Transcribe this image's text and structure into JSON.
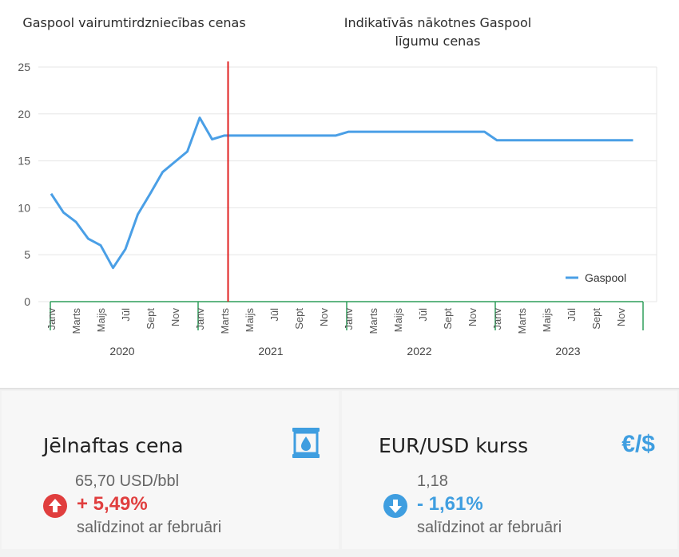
{
  "titles": {
    "left": "Gaspool vairumtirdzniecības cenas",
    "right": "Indikatīvās nākotnes Gaspool līgumu cenas"
  },
  "chart_data": {
    "type": "line",
    "title": "",
    "ylim": [
      0,
      25
    ],
    "yticks": [
      0,
      5,
      10,
      15,
      20,
      25
    ],
    "grid": true,
    "legend_position": "bottom-right",
    "months": [
      "Janv",
      "Marts",
      "Maijs",
      "Jūl",
      "Sept",
      "Nov"
    ],
    "years": [
      "2020",
      "2021",
      "2022",
      "2023"
    ],
    "divider_month_index": 14,
    "series": [
      {
        "name": "Gaspool",
        "color": "#4a9fe6",
        "values": [
          11.5,
          9.5,
          8.5,
          6.7,
          6.0,
          3.6,
          5.6,
          9.3,
          11.5,
          13.8,
          14.9,
          16.0,
          19.6,
          17.3,
          17.7,
          17.7,
          17.7,
          17.7,
          17.7,
          17.7,
          17.7,
          17.7,
          17.7,
          17.7,
          18.1,
          18.1,
          18.1,
          18.1,
          18.1,
          18.1,
          18.1,
          18.1,
          18.1,
          18.1,
          18.1,
          18.1,
          17.2,
          17.2,
          17.2,
          17.2,
          17.2,
          17.2,
          17.2,
          17.2,
          17.2,
          17.2,
          17.2,
          17.2
        ]
      }
    ]
  },
  "colors": {
    "line": "#4a9fe6",
    "divider": "#e02020",
    "axis_green": "#2f9e5a",
    "grid": "#e6e6e6",
    "up": "#e03e3e",
    "down": "#3f9ee0"
  },
  "cards": {
    "oil": {
      "title": "Jēlnaftas cena",
      "icon": "oil-barrel-icon",
      "value": "65,70 USD/bbl",
      "change": "+ 5,49%",
      "note": "salīdzinot ar februāri"
    },
    "fx": {
      "title": "EUR/USD kurss",
      "icon": "€/$",
      "value": "1,18",
      "change": "- 1,61%",
      "note": "salīdzinot ar februāri"
    }
  }
}
